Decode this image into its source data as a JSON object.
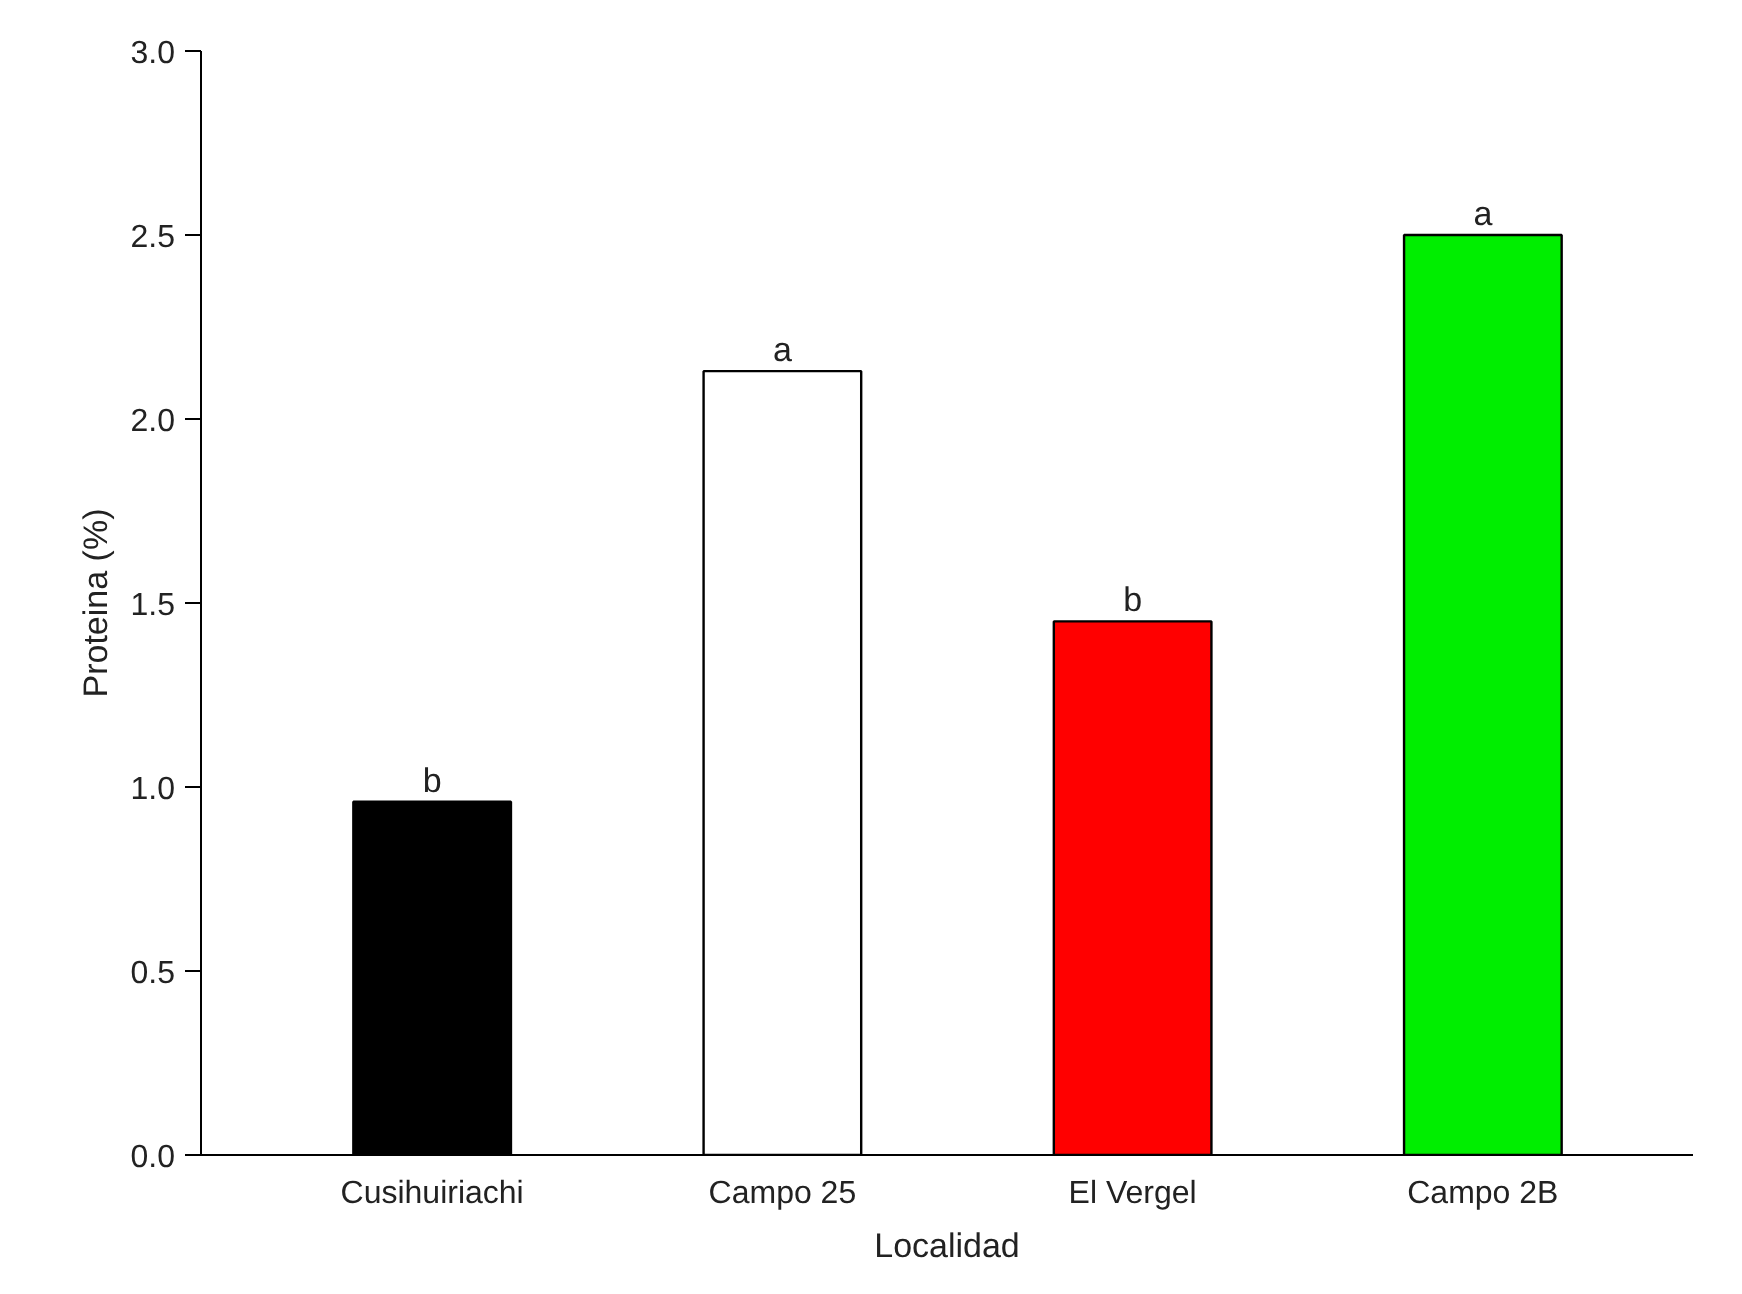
{
  "chart_data": {
    "type": "bar",
    "xlabel": "Localidad",
    "ylabel": "Proteina (%)",
    "categories": [
      "Cusihuiriachi",
      "Campo 25",
      "El Vergel",
      "Campo 2B"
    ],
    "values": [
      0.96,
      2.13,
      1.45,
      2.5
    ],
    "colors": [
      "#000000",
      "#ffffff",
      "#ff0000",
      "#00ee00"
    ],
    "ylim": [
      0,
      3.0
    ],
    "yticks": [
      {
        "value": 0,
        "label": "0.0"
      },
      {
        "value": 0.5,
        "label": "0.5"
      },
      {
        "value": 1.0,
        "label": "1.0"
      },
      {
        "value": 1.5,
        "label": "1.5"
      },
      {
        "value": 2.0,
        "label": "2.0"
      },
      {
        "value": 2.5,
        "label": "2.5"
      },
      {
        "value": 3.0,
        "label": "3.0"
      }
    ],
    "annotations": [
      {
        "text": "b",
        "x": "Cusihuiriachi",
        "y": 0.96
      },
      {
        "text": "a",
        "x": "Campo 25",
        "y": 2.13
      },
      {
        "text": "b",
        "x": "El Vergel",
        "y": 1.45
      },
      {
        "text": "a",
        "x": "Campo 2B",
        "y": 2.5
      }
    ],
    "grid": false
  }
}
